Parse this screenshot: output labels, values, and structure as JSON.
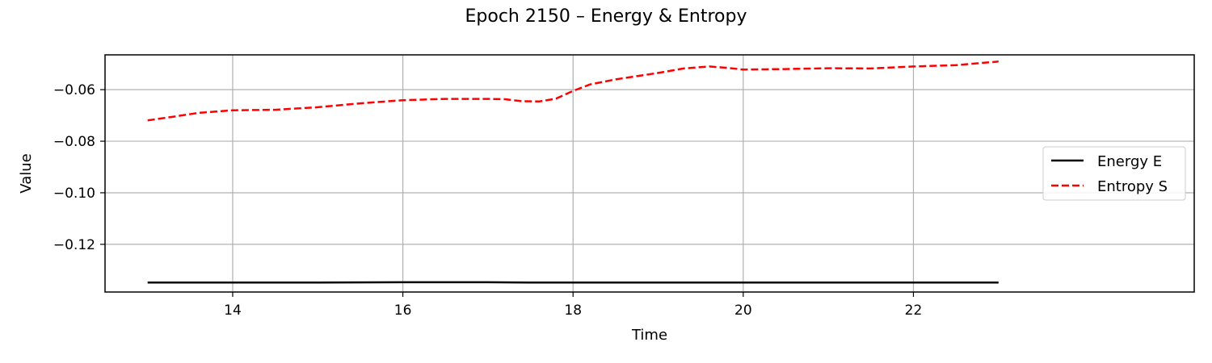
{
  "chart_data": {
    "type": "line",
    "title": "Epoch 2150 – Energy & Entropy",
    "xlabel": "Time",
    "ylabel": "Value",
    "xlim": [
      12.5,
      25.3
    ],
    "ylim": [
      -0.1385,
      -0.0465
    ],
    "xticks": [
      14,
      16,
      18,
      20,
      22
    ],
    "xtick_labels": [
      "14",
      "16",
      "18",
      "20",
      "22"
    ],
    "yticks": [
      -0.12,
      -0.1,
      -0.08,
      -0.06
    ],
    "ytick_labels": [
      "−0.12",
      "−0.10",
      "−0.08",
      "−0.06"
    ],
    "grid": true,
    "legend_position": "center-right",
    "series": [
      {
        "name": "Energy E",
        "color": "#000000",
        "style": "solid",
        "x": [
          13.0,
          14.0,
          15.0,
          16.0,
          16.5,
          17.0,
          17.5,
          18.0,
          19.0,
          20.0,
          21.0,
          22.0,
          23.0
        ],
        "y": [
          -0.1348,
          -0.1348,
          -0.1348,
          -0.1347,
          -0.1347,
          -0.1347,
          -0.1348,
          -0.1348,
          -0.1348,
          -0.1348,
          -0.1348,
          -0.1348,
          -0.1348
        ]
      },
      {
        "name": "Entropy S",
        "color": "#ff0000",
        "style": "dashed",
        "x": [
          13.0,
          13.3,
          13.6,
          14.0,
          14.5,
          15.0,
          15.5,
          16.0,
          16.5,
          17.0,
          17.2,
          17.4,
          17.6,
          17.8,
          18.0,
          18.2,
          18.5,
          18.8,
          19.0,
          19.3,
          19.6,
          19.8,
          20.0,
          20.5,
          21.0,
          21.5,
          22.0,
          22.5,
          23.0
        ],
        "y": [
          -0.0719,
          -0.0705,
          -0.069,
          -0.068,
          -0.0678,
          -0.0668,
          -0.0653,
          -0.0641,
          -0.0636,
          -0.0636,
          -0.0637,
          -0.0645,
          -0.0646,
          -0.0635,
          -0.0605,
          -0.058,
          -0.056,
          -0.0545,
          -0.0535,
          -0.0518,
          -0.051,
          -0.0515,
          -0.0522,
          -0.052,
          -0.0517,
          -0.0518,
          -0.051,
          -0.0505,
          -0.0491
        ]
      }
    ]
  }
}
